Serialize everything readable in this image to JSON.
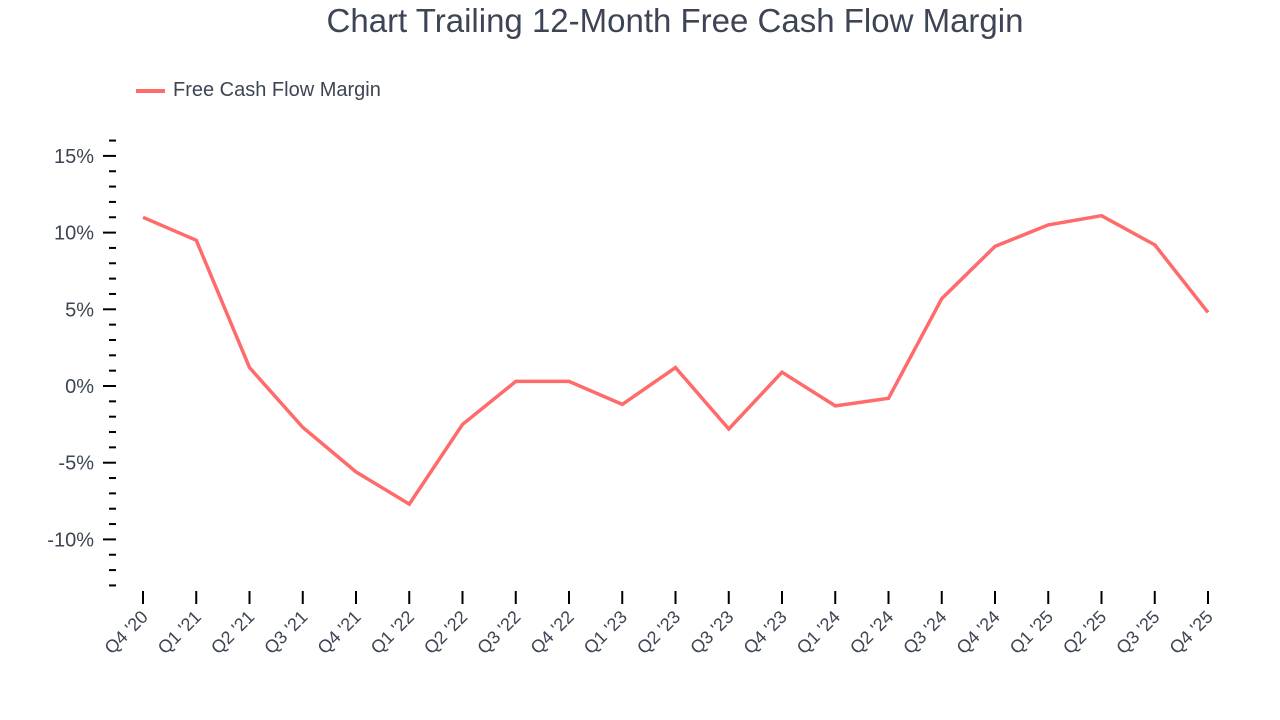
{
  "title": "Chart Trailing 12-Month Free Cash Flow Margin",
  "legend": {
    "label": "Free Cash Flow Margin",
    "color": "#ff6b6b"
  },
  "colors": {
    "line": "#ff6b6b",
    "text": "#3d4554",
    "axis": "#000000",
    "background": "#ffffff"
  },
  "chart_data": {
    "type": "line",
    "title": "Chart Trailing 12-Month Free Cash Flow Margin",
    "xlabel": "",
    "ylabel": "",
    "ylim": [
      -13,
      16
    ],
    "grid": false,
    "legend_position": "top-left",
    "y_ticks": [
      15,
      10,
      5,
      0,
      -5,
      -10
    ],
    "y_tick_labels": [
      "15%",
      "10%",
      "5%",
      "0%",
      "-5%",
      "-10%"
    ],
    "categories": [
      "Q4 '20",
      "Q1 '21",
      "Q2 '21",
      "Q3 '21",
      "Q4 '21",
      "Q1 '22",
      "Q2 '22",
      "Q3 '22",
      "Q4 '22",
      "Q1 '23",
      "Q2 '23",
      "Q3 '23",
      "Q4 '23",
      "Q1 '24",
      "Q2 '24",
      "Q3 '24",
      "Q4 '24",
      "Q1 '25",
      "Q2 '25",
      "Q3 '25",
      "Q4 '25"
    ],
    "series": [
      {
        "name": "Free Cash Flow Margin",
        "color": "#ff6b6b",
        "values": [
          11.0,
          9.5,
          1.2,
          -2.7,
          -5.6,
          -7.7,
          -2.5,
          0.3,
          0.3,
          -1.2,
          1.2,
          -2.8,
          0.9,
          -1.3,
          -0.8,
          5.7,
          9.1,
          10.5,
          11.1,
          9.2,
          4.8
        ]
      }
    ]
  }
}
